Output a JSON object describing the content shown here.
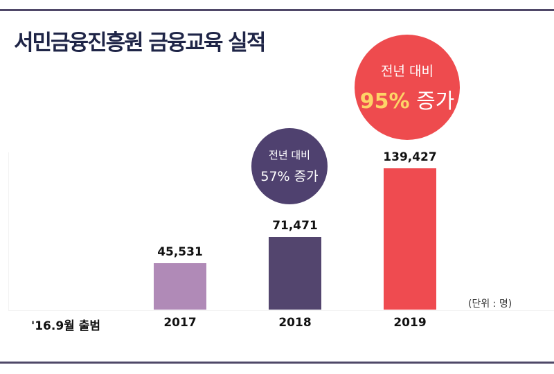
{
  "title": "서민금융진흥원 금융교육 실적",
  "unit_label": "(단위 : 명)",
  "chart_data": {
    "type": "bar",
    "title": "서민금융진흥원 금융교육 실적",
    "categories": [
      "'16.9월 출범",
      "2017",
      "2018",
      "2019"
    ],
    "values": [
      null,
      45531,
      71471,
      139427
    ],
    "value_labels": [
      "",
      "45,531",
      "71,471",
      "139,427"
    ],
    "colors": [
      "#ffffff",
      "#b08ab7",
      "#53456e",
      "#ef4b50"
    ],
    "grid": false,
    "ylim": [
      0,
      150000
    ]
  },
  "callouts": [
    {
      "line1": "전년 대비",
      "pct": "57%",
      "suffix": "증가",
      "color": "#4f416f"
    },
    {
      "line1": "전년 대비",
      "pct": "95%",
      "suffix": "증가",
      "color": "#ee4b4e",
      "pct_color": "#fdd467"
    }
  ]
}
